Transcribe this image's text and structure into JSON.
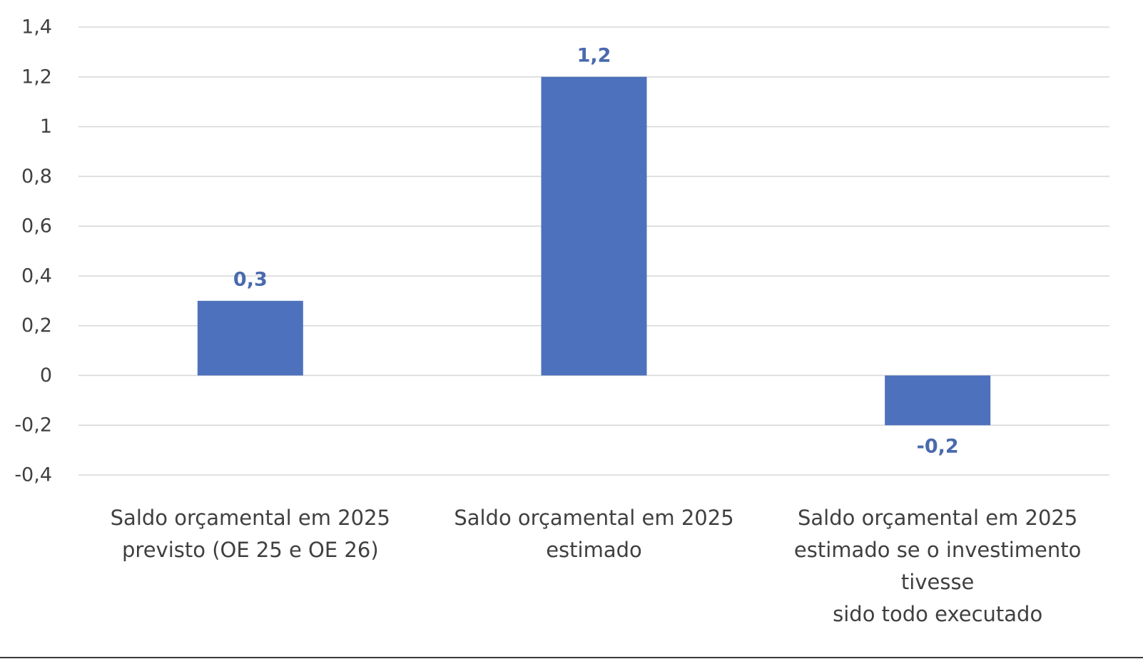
{
  "chart_data": {
    "type": "bar",
    "categories": [
      [
        "Saldo orçamental em 2025",
        "previsto (OE 25 e OE 26)"
      ],
      [
        "Saldo orçamental em 2025",
        "estimado"
      ],
      [
        "Saldo orçamental em 2025",
        "estimado se o investimento",
        "tivesse",
        "sido todo executado"
      ]
    ],
    "values": [
      0.3,
      1.2,
      -0.2
    ],
    "data_labels": [
      "0,3",
      "1,2",
      "-0,2"
    ],
    "yticks": [
      -0.4,
      -0.2,
      0,
      0.2,
      0.4,
      0.6,
      0.8,
      1,
      1.2,
      1.4
    ],
    "ytick_labels": [
      "-0,4",
      "-0,2",
      "0",
      "0,2",
      "0,4",
      "0,6",
      "0,8",
      "1",
      "1,2",
      "1,4"
    ],
    "ylim": [
      -0.4,
      1.4
    ],
    "grid": true,
    "legend": false,
    "colors": {
      "bar": "#4e71bd",
      "data_label": "#4a6aae",
      "grid": "#d9d9d9",
      "text": "#404040"
    }
  }
}
